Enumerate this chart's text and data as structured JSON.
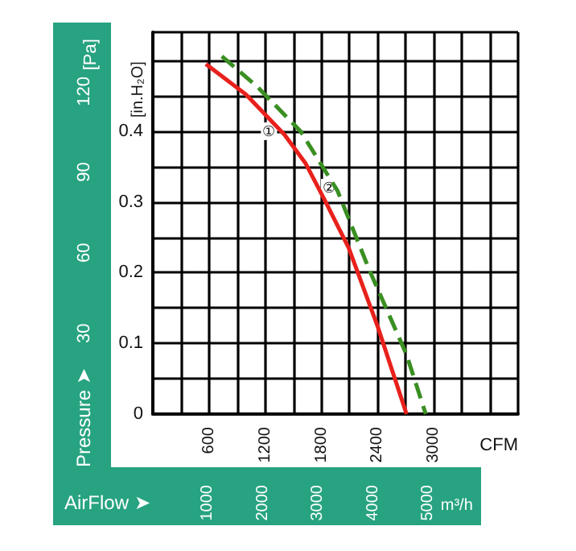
{
  "chart_data": {
    "type": "line",
    "xlabel": "CFM",
    "ylabel": "[in.H₂O]",
    "y2label": "[Pa]",
    "x2label": "m³/h",
    "xlim": [
      0,
      3900
    ],
    "xticks": [
      {
        "value": 0,
        "label": null
      },
      {
        "value": 300,
        "label": null
      },
      600,
      {
        "value": 900,
        "label": null
      },
      1200,
      {
        "value": 1500,
        "label": null
      },
      1800,
      {
        "value": 2100,
        "label": null
      },
      2400,
      {
        "value": 2700,
        "label": null
      },
      3000,
      {
        "value": 3300,
        "label": null
      },
      {
        "value": 3600,
        "label": null
      },
      {
        "value": 3900,
        "label": null
      }
    ],
    "ylim": [
      0,
      0.54
    ],
    "yticks": [
      0,
      {
        "value": 0.05,
        "label": null
      },
      0.1,
      {
        "value": 0.15,
        "label": null
      },
      0.2,
      {
        "value": 0.25,
        "label": null
      },
      0.3,
      {
        "value": 0.35,
        "label": null
      },
      0.4,
      {
        "value": 0.45,
        "label": null
      },
      {
        "value": 0.5,
        "label": null
      },
      {
        "value": 0.54,
        "label": null
      }
    ],
    "y2lim": [
      0,
      142
    ],
    "y2ticks": [
      30,
      60,
      90,
      120
    ],
    "x2lim": [
      0,
      5000
    ],
    "x2ticks": [
      1000,
      2000,
      3000,
      4000,
      5000
    ],
    "grid": true,
    "marker": "none",
    "series": [
      {
        "color": "#e8211c",
        "line_style": "solid",
        "x": [
          566,
          994,
          1406,
          1629,
          1834,
          2091,
          2400,
          2709
        ],
        "values": [
          0.495,
          0.452,
          0.395,
          0.355,
          0.303,
          0.235,
          0.124,
          0
        ]
      },
      {
        "color": "#3a8f22",
        "line_style": "dashed",
        "x": [
          737,
          1114,
          1577,
          1971,
          2314,
          2709,
          2914
        ],
        "values": [
          0.506,
          0.463,
          0.4,
          0.316,
          0.203,
          0.084,
          0
        ]
      }
    ],
    "annotations": [
      "Pressure ➤",
      "AirFlow ➤",
      {
        "text": "①",
        "x": 1240,
        "y": 0.4
      },
      {
        "text": "②",
        "x": 1880,
        "y": 0.32
      }
    ]
  }
}
